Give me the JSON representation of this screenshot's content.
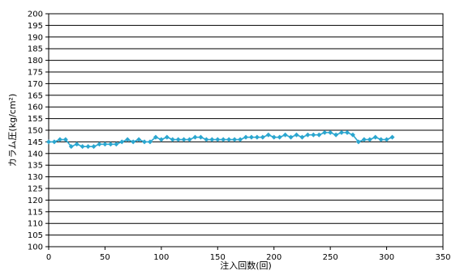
{
  "chart_data": {
    "type": "line",
    "title": "",
    "xlabel": "注入回数(回)",
    "ylabel": "カラム圧(kg/cm²)",
    "xlim": [
      0,
      350
    ],
    "ylim": [
      100,
      200
    ],
    "xticks": [
      0,
      50,
      100,
      150,
      200,
      250,
      300,
      350
    ],
    "yticks": [
      100,
      105,
      110,
      115,
      120,
      125,
      130,
      135,
      140,
      145,
      150,
      155,
      160,
      165,
      170,
      175,
      180,
      185,
      190,
      195,
      200
    ],
    "grid": "horizontal",
    "legend": "none",
    "series": [
      {
        "color": "#2BA6CF",
        "marker": "diamond",
        "x": [
          0,
          5,
          10,
          15,
          20,
          25,
          30,
          35,
          40,
          45,
          50,
          55,
          60,
          65,
          70,
          75,
          80,
          85,
          90,
          95,
          100,
          105,
          110,
          115,
          120,
          125,
          130,
          135,
          140,
          145,
          150,
          155,
          160,
          165,
          170,
          175,
          180,
          185,
          190,
          195,
          200,
          205,
          210,
          215,
          220,
          225,
          230,
          235,
          240,
          245,
          250,
          255,
          260,
          265,
          270,
          275,
          280,
          285,
          290,
          295,
          300,
          305
        ],
        "y": [
          145,
          145,
          146,
          146,
          143,
          144,
          143,
          143,
          143,
          144,
          144,
          144,
          144,
          145,
          146,
          145,
          146,
          145,
          145,
          147,
          146,
          147,
          146,
          146,
          146,
          146,
          147,
          147,
          146,
          146,
          146,
          146,
          146,
          146,
          146,
          147,
          147,
          147,
          147,
          148,
          147,
          147,
          148,
          147,
          148,
          147,
          148,
          148,
          148,
          149,
          149,
          148,
          149,
          149,
          148,
          145,
          146,
          146,
          147,
          146,
          146,
          147
        ]
      }
    ]
  }
}
